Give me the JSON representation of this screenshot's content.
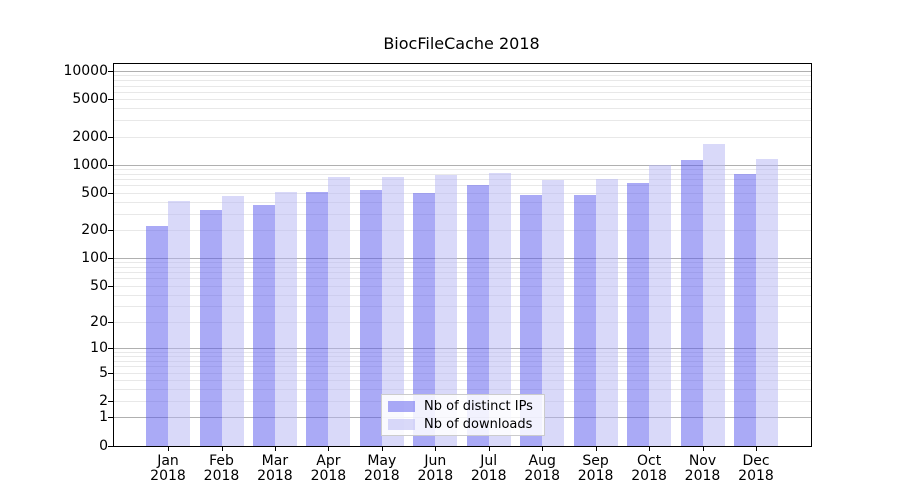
{
  "chart_data": {
    "type": "bar",
    "title": "BiocFileCache 2018",
    "categories": [
      {
        "month": "Jan",
        "year": "2018"
      },
      {
        "month": "Feb",
        "year": "2018"
      },
      {
        "month": "Mar",
        "year": "2018"
      },
      {
        "month": "Apr",
        "year": "2018"
      },
      {
        "month": "May",
        "year": "2018"
      },
      {
        "month": "Jun",
        "year": "2018"
      },
      {
        "month": "Jul",
        "year": "2018"
      },
      {
        "month": "Aug",
        "year": "2018"
      },
      {
        "month": "Sep",
        "year": "2018"
      },
      {
        "month": "Oct",
        "year": "2018"
      },
      {
        "month": "Nov",
        "year": "2018"
      },
      {
        "month": "Dec",
        "year": "2018"
      }
    ],
    "series": [
      {
        "name": "Nb of distinct IPs",
        "color_hex": "#aaaaf6",
        "fill": "rgba(85,85,238,0.5)",
        "values": [
          220,
          324,
          366,
          505,
          530,
          492,
          614,
          480,
          480,
          630,
          1110,
          786
        ]
      },
      {
        "name": "Nb of downloads",
        "color_hex": "#d9d9f9",
        "fill": "rgba(179,179,243,0.5)",
        "values": [
          405,
          457,
          505,
          730,
          730,
          767,
          825,
          678,
          695,
          1005,
          1645,
          1165
        ]
      }
    ],
    "y_axis": {
      "scale": "log1p",
      "tick_values": [
        0,
        1,
        2,
        5,
        10,
        20,
        50,
        100,
        200,
        500,
        1000,
        2000,
        5000,
        10000
      ],
      "min": 0,
      "max": 10000
    },
    "grid": {
      "major_color": "#b0b0b0",
      "minor_color": "#e8e8e8",
      "minor_multiples": [
        2,
        3,
        4,
        5,
        6,
        7,
        8,
        9
      ]
    },
    "legend": {
      "position": "lower center"
    }
  }
}
